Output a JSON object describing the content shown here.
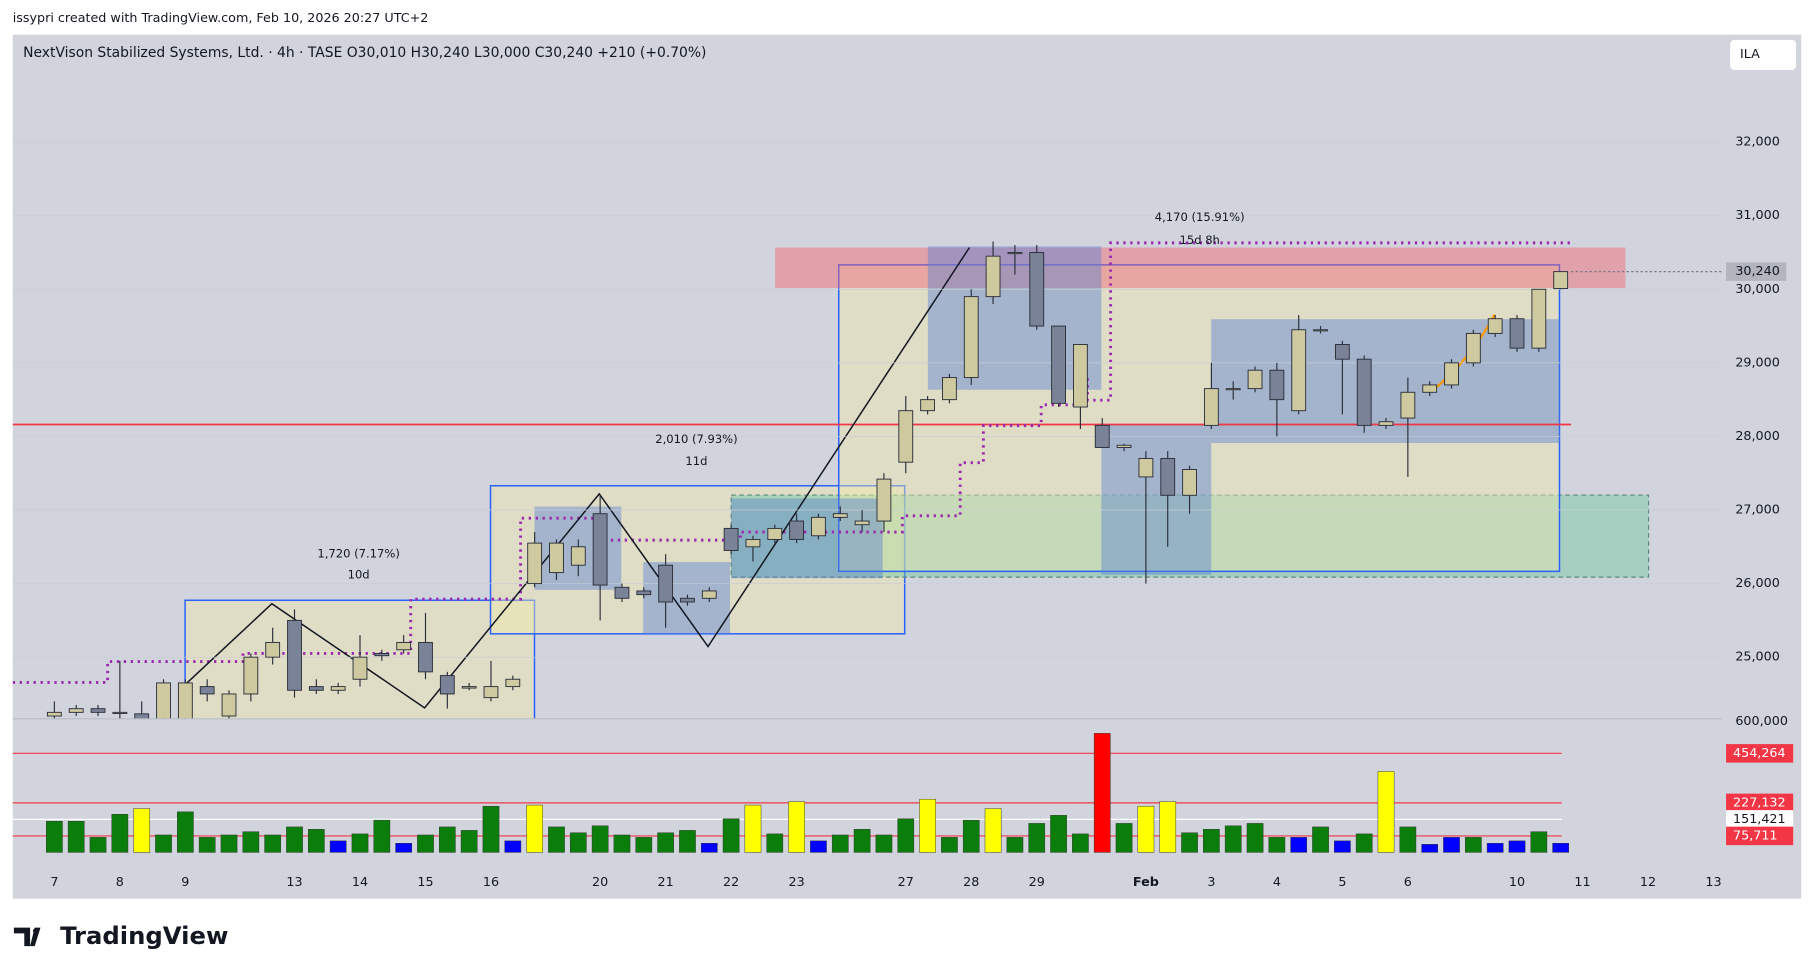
{
  "header": {
    "credit": "issypri created with TradingView.com, Feb 10, 2026 20:27 UTC+2",
    "currency": "ILA",
    "brand": "TradingView"
  },
  "chart_data": [
    {
      "type": "candlestick",
      "title": "NextVison Stabilized Systems, Ltd. · 4h · TASE  O30,010  H30,240  L30,000  C30,240  +210 (+0.70%)",
      "categories": [
        "7",
        null,
        null,
        "8",
        null,
        null,
        "9",
        null,
        null,
        null,
        null,
        "13",
        null,
        null,
        "14",
        null,
        null,
        "15",
        null,
        null,
        "16",
        null,
        null,
        null,
        null,
        "20",
        null,
        null,
        "21",
        null,
        null,
        "22",
        null,
        null,
        "23",
        null,
        null,
        null,
        null,
        "27",
        null,
        null,
        "28",
        null,
        null,
        "29",
        null,
        null,
        null,
        null,
        "Feb",
        null,
        null,
        "3",
        null,
        null,
        "4",
        null,
        null,
        "5",
        null,
        null,
        "6",
        null,
        null,
        null,
        null,
        "10",
        null,
        null,
        "11",
        null,
        null,
        "12",
        null,
        null,
        "13"
      ],
      "open": [
        24200,
        24250,
        24300,
        24250,
        24230,
        24150,
        24100,
        24600,
        24200,
        24500,
        25000,
        25500,
        24600,
        24550,
        24700,
        25050,
        25100,
        25200,
        24750,
        24580,
        24450,
        24600,
        26000,
        26150,
        26250,
        26950,
        25950,
        25900,
        26250,
        25800,
        25800,
        26750,
        26500,
        26600,
        26850,
        26650,
        26900,
        26800,
        26850,
        27650,
        28350,
        28500,
        28800,
        29900,
        30500,
        30500,
        29500,
        28400,
        28150,
        27850,
        27450,
        27700,
        27200,
        28150,
        28650,
        28650,
        28900,
        28350,
        29450,
        29250,
        29050,
        28150,
        28250,
        28600,
        28700,
        29000,
        29400,
        29600,
        29200,
        30010,
        null,
        null,
        null,
        null,
        null,
        null,
        null
      ],
      "high": [
        24400,
        24350,
        24350,
        24950,
        24400,
        24700,
        24700,
        24700,
        24550,
        25050,
        25400,
        25650,
        24700,
        24650,
        25300,
        25100,
        25300,
        25600,
        24800,
        24650,
        24950,
        24750,
        26700,
        26600,
        26600,
        27200,
        26000,
        25950,
        26400,
        25850,
        25950,
        26800,
        26650,
        26800,
        26950,
        26950,
        27050,
        27000,
        27500,
        28550,
        28550,
        28850,
        30000,
        30650,
        30600,
        30600,
        29500,
        29250,
        28250,
        27900,
        27800,
        27800,
        27600,
        29000,
        28750,
        28950,
        29000,
        29650,
        29500,
        29300,
        29100,
        28250,
        28800,
        28750,
        29050,
        29450,
        29650,
        29650,
        30000,
        30240,
        null,
        null,
        null,
        null,
        null,
        null,
        null
      ],
      "low": [
        24150,
        24200,
        24200,
        24150,
        24100,
        24100,
        24050,
        24400,
        24150,
        24400,
        24900,
        24450,
        24500,
        24500,
        24600,
        24950,
        25050,
        24700,
        24300,
        24550,
        24400,
        24550,
        25950,
        26050,
        26100,
        25500,
        25750,
        25800,
        25400,
        25700,
        25750,
        26400,
        26300,
        26550,
        26550,
        26600,
        26850,
        26700,
        26700,
        27500,
        28300,
        28450,
        28700,
        29800,
        30200,
        29450,
        28400,
        28100,
        27850,
        27800,
        26000,
        26500,
        26950,
        28100,
        28500,
        28600,
        28000,
        28300,
        29400,
        28300,
        28050,
        28100,
        27450,
        28550,
        28650,
        28950,
        29350,
        29150,
        29150,
        30000,
        null,
        null,
        null,
        null,
        null,
        null,
        null
      ],
      "close": [
        24250,
        24300,
        24250,
        24250,
        24150,
        24650,
        24650,
        24500,
        24500,
        25000,
        25200,
        24550,
        24550,
        24600,
        25000,
        25020,
        25200,
        24800,
        24500,
        24600,
        24600,
        24700,
        26550,
        26550,
        26500,
        25980,
        25800,
        25850,
        25750,
        25750,
        25900,
        26450,
        26600,
        26750,
        26600,
        26900,
        26950,
        26850,
        27420,
        28350,
        28500,
        28800,
        29900,
        30450,
        30500,
        29500,
        28450,
        29250,
        27850,
        27880,
        27700,
        27200,
        27550,
        28650,
        28650,
        28900,
        28500,
        29450,
        29450,
        29050,
        28150,
        28200,
        28600,
        28700,
        29000,
        29400,
        29600,
        29200,
        30000,
        30240,
        null,
        null,
        null,
        null,
        null,
        null,
        null
      ],
      "up_color": "#cfc9a0",
      "down_color": "#7a8298",
      "ylim": [
        24170,
        33460
      ],
      "yticks": [
        {
          "value": 25000,
          "label": "25,000"
        },
        {
          "value": 26000,
          "label": "26,000"
        },
        {
          "value": 27000,
          "label": "27,000"
        },
        {
          "value": 28000,
          "label": "28,000"
        },
        {
          "value": 29000,
          "label": "29,000"
        },
        {
          "value": 30000,
          "label": "30,000"
        },
        {
          "value": 31000,
          "label": "31,000"
        },
        {
          "value": 32000,
          "label": "32,000"
        }
      ],
      "last_price": {
        "value": 30240,
        "label": "30,240"
      },
      "annotations": [
        "1,720 (7.17%)",
        "10d",
        "2,010 (7.93%)",
        "11d",
        "4,170 (15.91%)",
        "15d 8h"
      ]
    },
    {
      "type": "bar",
      "values": [
        143000,
        143000,
        69000,
        175000,
        201000,
        80000,
        186000,
        69000,
        80000,
        95000,
        80000,
        117000,
        106000,
        53000,
        85000,
        148000,
        42000,
        80000,
        117000,
        101000,
        212000,
        53000,
        217000,
        117000,
        90000,
        122000,
        80000,
        69000,
        90000,
        101000,
        42000,
        154000,
        217000,
        85000,
        233000,
        53000,
        80000,
        106000,
        80000,
        154000,
        244000,
        69000,
        148000,
        201000,
        69000,
        133000,
        170000,
        85000,
        546000,
        133000,
        212000,
        233000,
        90000,
        106000,
        122000,
        133000,
        69000,
        69000,
        117000,
        53000,
        85000,
        371000,
        117000,
        37000,
        69000,
        69000,
        42000,
        53000,
        95000,
        42000,
        null,
        null,
        null,
        null,
        null,
        null,
        null
      ],
      "colors": [
        "#0b7d0b",
        "#0b7d0b",
        "#0b7d0b",
        "#0b7d0b",
        "#ffff00",
        "#0b7d0b",
        "#0b7d0b",
        "#0b7d0b",
        "#0b7d0b",
        "#0b7d0b",
        "#0b7d0b",
        "#0b7d0b",
        "#0b7d0b",
        "#0000ff",
        "#0b7d0b",
        "#0b7d0b",
        "#0000ff",
        "#0b7d0b",
        "#0b7d0b",
        "#0b7d0b",
        "#0b7d0b",
        "#0000ff",
        "#ffff00",
        "#0b7d0b",
        "#0b7d0b",
        "#0b7d0b",
        "#0b7d0b",
        "#0b7d0b",
        "#0b7d0b",
        "#0b7d0b",
        "#0000ff",
        "#0b7d0b",
        "#ffff00",
        "#0b7d0b",
        "#ffff00",
        "#0000ff",
        "#0b7d0b",
        "#0b7d0b",
        "#0b7d0b",
        "#0b7d0b",
        "#ffff00",
        "#0b7d0b",
        "#0b7d0b",
        "#ffff00",
        "#0b7d0b",
        "#0b7d0b",
        "#0b7d0b",
        "#0b7d0b",
        "#ff0000",
        "#0b7d0b",
        "#ffff00",
        "#ffff00",
        "#0b7d0b",
        "#0b7d0b",
        "#0b7d0b",
        "#0b7d0b",
        "#0b7d0b",
        "#0000ff",
        "#0b7d0b",
        "#0000ff",
        "#0b7d0b",
        "#ffff00",
        "#0b7d0b",
        "#0000ff",
        "#0000ff",
        "#0b7d0b",
        "#0000ff",
        "#0000ff",
        "#0b7d0b",
        "#0000ff",
        null,
        null,
        null,
        null,
        null,
        null,
        null
      ],
      "ylim": [
        0,
        610000
      ],
      "yticks": [
        {
          "value": 600000,
          "label": "600,000"
        }
      ],
      "levels": [
        {
          "value": 454264,
          "label": "454,264",
          "color": "#f23645"
        },
        {
          "value": 227132,
          "label": "227,132",
          "color": "#f23645"
        },
        {
          "value": 151421,
          "label": "151,421",
          "color": "#ffffff"
        },
        {
          "value": 75711,
          "label": "75,711",
          "color": "#f23645"
        }
      ]
    }
  ]
}
